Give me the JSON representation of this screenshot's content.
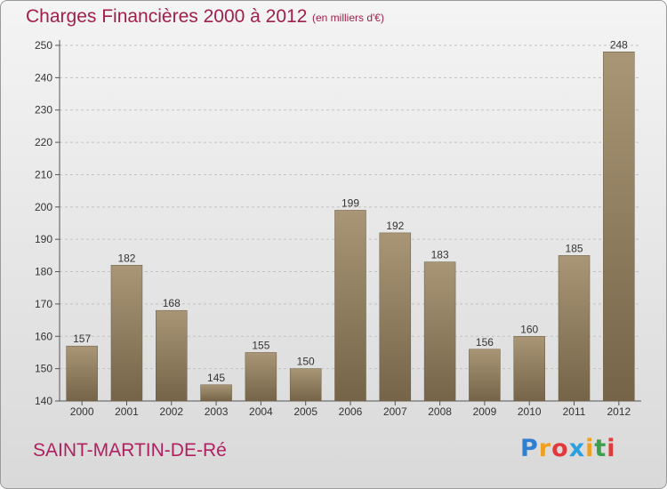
{
  "header": {
    "title": "Charges Financières 2000 à 2012",
    "unit": "(en milliers d'€)"
  },
  "footer": {
    "commune": "SAINT-MARTIN-DE-Ré",
    "logo_letters": [
      "P",
      "r",
      "o",
      "x",
      "i",
      "t",
      "i"
    ],
    "logo_colors": [
      "#2e7fd0",
      "#f0a020",
      "#e23a3a",
      "#2aa0e0",
      "#f0a020",
      "#3aa04a",
      "#e23a3a"
    ]
  },
  "colors": {
    "bar_top": "#a89676",
    "bar_bottom": "#756448",
    "grid": "#c2c2c2",
    "axis": "#555555",
    "text": "#333333",
    "accent": "#a0204a"
  },
  "chart_data": {
    "type": "bar",
    "title": "Charges Financières 2000 à 2012",
    "subtitle": "(en milliers d'€)",
    "categories": [
      "2000",
      "2001",
      "2002",
      "2003",
      "2004",
      "2005",
      "2006",
      "2007",
      "2008",
      "2009",
      "2010",
      "2011",
      "2012"
    ],
    "values": [
      157,
      182,
      168,
      145,
      155,
      150,
      199,
      192,
      183,
      156,
      160,
      185,
      248
    ],
    "data_labels": [
      "157",
      "182",
      "168",
      "145",
      "155",
      "150",
      "199",
      "192",
      "183",
      "156",
      "160",
      "185",
      "248"
    ],
    "yticks": [
      "140",
      "150",
      "160",
      "170",
      "180",
      "190",
      "200",
      "210",
      "220",
      "230",
      "240",
      "250"
    ],
    "ylim": [
      140,
      250
    ],
    "grid": true,
    "legend": "none"
  }
}
